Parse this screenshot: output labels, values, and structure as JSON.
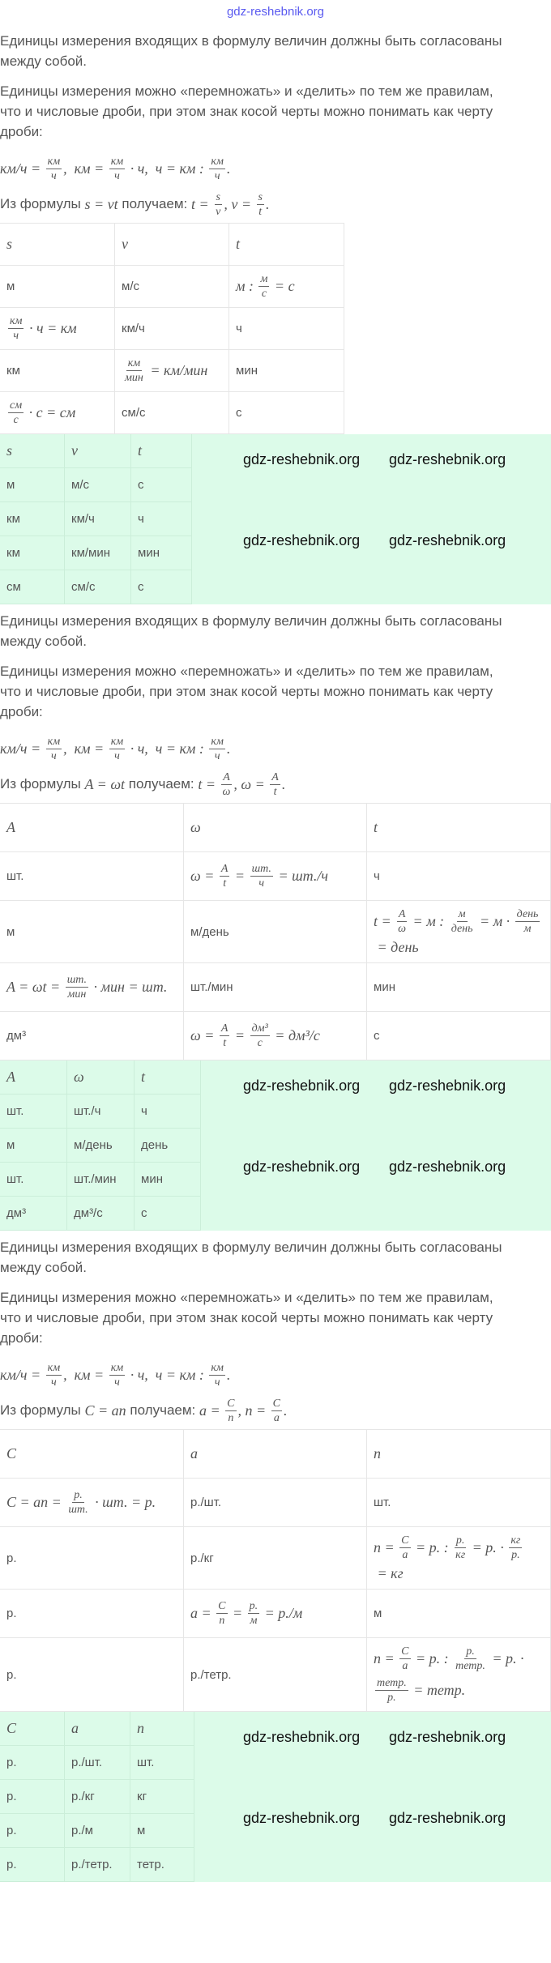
{
  "top_watermark": "gdz-reshebnik.org",
  "watermark": "gdz-reshebnik.org",
  "sections": [
    {
      "para1": [
        "Единицы измерения входящих в формулу величин должны быть согласованы",
        "между собой."
      ],
      "para2": [
        "Единицы измерения можно «перемножать» и «делить» по тем же правилам,",
        "что и числовые дроби, при этом знак косой черты можно понимать как черту",
        "дроби:"
      ],
      "units_formula": [
        "км/ч = ",
        {
          "f": [
            "км",
            "ч"
          ]
        },
        ",  км = ",
        {
          "f": [
            "км",
            "ч"
          ]
        },
        " · ч,  ч = км : ",
        {
          "f": [
            "км",
            "ч"
          ]
        },
        "."
      ],
      "derive": {
        "prefix": "Из формулы ",
        "formula": [
          "s = νt"
        ],
        "middle": " получаем: ",
        "result": [
          "t = ",
          {
            "f": [
              "s",
              "ν"
            ]
          },
          ", ν = ",
          {
            "f": [
              "s",
              "t"
            ]
          },
          "."
        ]
      },
      "table": {
        "headers": [
          [
            "s"
          ],
          [
            "ν"
          ],
          [
            "t"
          ]
        ],
        "rows": [
          [
            "м",
            "м/с",
            [
              "м : ",
              {
                "f": [
                  "м",
                  "с"
                ]
              },
              " = с"
            ]
          ],
          [
            [
              {
                "f": [
                  "км",
                  "ч"
                ]
              },
              " · ч = км"
            ],
            "км/ч",
            "ч"
          ],
          [
            "км",
            [
              {
                "f": [
                  "км",
                  "мин"
                ]
              },
              " = км/мин"
            ],
            "мин"
          ],
          [
            [
              {
                "f": [
                  "см",
                  "с"
                ]
              },
              " · с = см"
            ],
            "см/с",
            "с"
          ]
        ]
      },
      "answer": {
        "headers": [
          [
            "s"
          ],
          [
            "ν"
          ],
          [
            "t"
          ]
        ],
        "rows": [
          [
            "м",
            "м/с",
            "с"
          ],
          [
            "км",
            "км/ч",
            "ч"
          ],
          [
            "км",
            "км/мин",
            "мин"
          ],
          [
            "см",
            "см/с",
            "с"
          ]
        ]
      }
    },
    {
      "para1": [
        "Единицы измерения входящих в формулу величин должны быть согласованы",
        "между собой."
      ],
      "para2": [
        "Единицы измерения можно «перемножать» и «делить» по тем же правилам,",
        "что и числовые дроби, при этом знак косой черты можно понимать как черту",
        "дроби:"
      ],
      "units_formula": [
        "км/ч = ",
        {
          "f": [
            "км",
            "ч"
          ]
        },
        ",  км = ",
        {
          "f": [
            "км",
            "ч"
          ]
        },
        " · ч,  ч = км : ",
        {
          "f": [
            "км",
            "ч"
          ]
        },
        "."
      ],
      "derive": {
        "prefix": "Из формулы ",
        "formula": [
          "A = ωt"
        ],
        "middle": " получаем: ",
        "result": [
          "t = ",
          {
            "f": [
              "A",
              "ω"
            ]
          },
          ", ω = ",
          {
            "f": [
              "A",
              "t"
            ]
          },
          "."
        ]
      },
      "table": {
        "headers": [
          [
            "A"
          ],
          [
            "ω"
          ],
          [
            "t"
          ]
        ],
        "rows": [
          [
            "шт.",
            [
              "ω = ",
              {
                "f": [
                  "A",
                  "t"
                ]
              },
              " = ",
              {
                "f": [
                  "шт.",
                  "ч"
                ]
              },
              " = шт./ч"
            ],
            "ч"
          ],
          [
            "м",
            "м/день",
            [
              "t = ",
              {
                "f": [
                  "A",
                  "ω"
                ]
              },
              " = м : ",
              {
                "f": [
                  "м",
                  "день"
                ]
              },
              " = м · ",
              {
                "f": [
                  "день",
                  "м"
                ]
              },
              " = день"
            ]
          ],
          [
            [
              "A = ωt = ",
              {
                "f": [
                  "шт.",
                  "мин"
                ]
              },
              " · мин = шт."
            ],
            "шт./мин",
            "мин"
          ],
          [
            "дм³",
            [
              "ω = ",
              {
                "f": [
                  "A",
                  "t"
                ]
              },
              " = ",
              {
                "f": [
                  "дм³",
                  "с"
                ]
              },
              " = дм³/с"
            ],
            "с"
          ]
        ]
      },
      "answer": {
        "headers": [
          [
            "A"
          ],
          [
            "ω"
          ],
          [
            "t"
          ]
        ],
        "rows": [
          [
            "шт.",
            "шт./ч",
            "ч"
          ],
          [
            "м",
            "м/день",
            "день"
          ],
          [
            "шт.",
            "шт./мин",
            "мин"
          ],
          [
            "дм³",
            "дм³/с",
            "с"
          ]
        ]
      }
    },
    {
      "para1": [
        "Единицы измерения входящих в формулу величин должны быть согласованы",
        "между собой."
      ],
      "para2": [
        "Единицы измерения можно «перемножать» и «делить» по тем же правилам,",
        "что и числовые дроби, при этом знак косой черты можно понимать как черту",
        "дроби:"
      ],
      "units_formula": [
        "км/ч = ",
        {
          "f": [
            "км",
            "ч"
          ]
        },
        ",  км = ",
        {
          "f": [
            "км",
            "ч"
          ]
        },
        " · ч,  ч = км : ",
        {
          "f": [
            "км",
            "ч"
          ]
        },
        "."
      ],
      "derive": {
        "prefix": "Из формулы ",
        "formula": [
          "C = an"
        ],
        "middle": " получаем: ",
        "result": [
          "a = ",
          {
            "f": [
              "C",
              "n"
            ]
          },
          ", n = ",
          {
            "f": [
              "C",
              "a"
            ]
          },
          "."
        ]
      },
      "table": {
        "headers": [
          [
            "C"
          ],
          [
            "a"
          ],
          [
            "n"
          ]
        ],
        "rows": [
          [
            [
              "C = an = ",
              {
                "f": [
                  "р.",
                  "шт."
                ]
              },
              " · шт. = р."
            ],
            "р./шт.",
            "шт."
          ],
          [
            "р.",
            "р./кг",
            [
              "n = ",
              {
                "f": [
                  "C",
                  "a"
                ]
              },
              " = р. : ",
              {
                "f": [
                  "р.",
                  "кг"
                ]
              },
              " = р. · ",
              {
                "f": [
                  "кг",
                  "р."
                ]
              },
              " = кг"
            ]
          ],
          [
            "р.",
            [
              "a = ",
              {
                "f": [
                  "C",
                  "n"
                ]
              },
              " = ",
              {
                "f": [
                  "р.",
                  "м"
                ]
              },
              " = р./м"
            ],
            "м"
          ],
          [
            "р.",
            "р./тетр.",
            [
              "n = ",
              {
                "f": [
                  "C",
                  "a"
                ]
              },
              " = р. : ",
              {
                "f": [
                  "р.",
                  "тетр."
                ]
              },
              " = р. · ",
              {
                "f": [
                  "тетр.",
                  "р."
                ]
              },
              " = тетр."
            ]
          ]
        ]
      },
      "answer": {
        "headers": [
          [
            "C"
          ],
          [
            "a"
          ],
          [
            "n"
          ]
        ],
        "rows": [
          [
            "р.",
            "р./шт.",
            "шт."
          ],
          [
            "р.",
            "р./кг",
            "кг"
          ],
          [
            "р.",
            "р./м",
            "м"
          ],
          [
            "р.",
            "р./тетр.",
            "тетр."
          ]
        ]
      }
    }
  ]
}
